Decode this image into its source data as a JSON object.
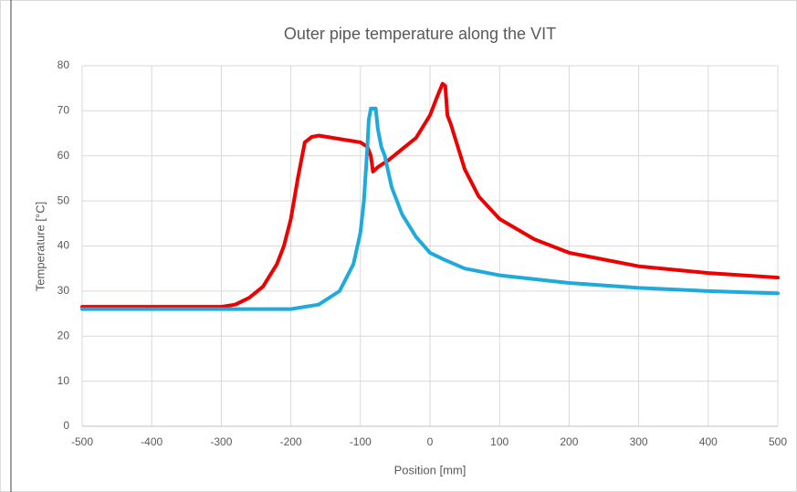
{
  "chart_data": {
    "type": "line",
    "title": "Outer pipe temperature along the VIT",
    "x_label": "Position [mm]",
    "y_label": "Temperature [°C]",
    "xlim": [
      -500,
      500
    ],
    "xticks": [
      -500,
      -400,
      -300,
      -200,
      -100,
      0,
      100,
      200,
      300,
      400,
      500
    ],
    "ylim": [
      0,
      80
    ],
    "yticks": [
      0,
      10,
      20,
      30,
      40,
      50,
      60,
      70,
      80
    ],
    "grid": true,
    "series": [
      {
        "color": "#ee0000",
        "x": [
          -500,
          -300,
          -280,
          -260,
          -240,
          -220,
          -210,
          -200,
          -190,
          -180,
          -170,
          -160,
          -140,
          -120,
          -100,
          -90,
          -85,
          -82,
          -75,
          -60,
          -40,
          -20,
          0,
          10,
          18,
          22,
          25,
          30,
          50,
          70,
          100,
          150,
          200,
          300,
          400,
          500
        ],
        "values": [
          26.5,
          26.5,
          27,
          28.5,
          31,
          36,
          40,
          46,
          55,
          63,
          64.2,
          64.5,
          64,
          63.5,
          63,
          62,
          60,
          56.5,
          57.5,
          59,
          61.5,
          64,
          69,
          73,
          76,
          75.5,
          69,
          67,
          57,
          51,
          46,
          41.5,
          38.5,
          35.5,
          34,
          33
        ]
      },
      {
        "color": "#1eaadc",
        "x": [
          -500,
          -200,
          -160,
          -130,
          -110,
          -100,
          -95,
          -90,
          -88,
          -85,
          -78,
          -75,
          -70,
          -65,
          -55,
          -40,
          -20,
          0,
          20,
          50,
          100,
          200,
          300,
          400,
          500
        ],
        "values": [
          26,
          26,
          27,
          30,
          36,
          43,
          50,
          62,
          68,
          70.5,
          70.5,
          66,
          62,
          60,
          53,
          47,
          42,
          38.5,
          37,
          35,
          33.5,
          31.8,
          30.7,
          30,
          29.5
        ]
      }
    ]
  }
}
